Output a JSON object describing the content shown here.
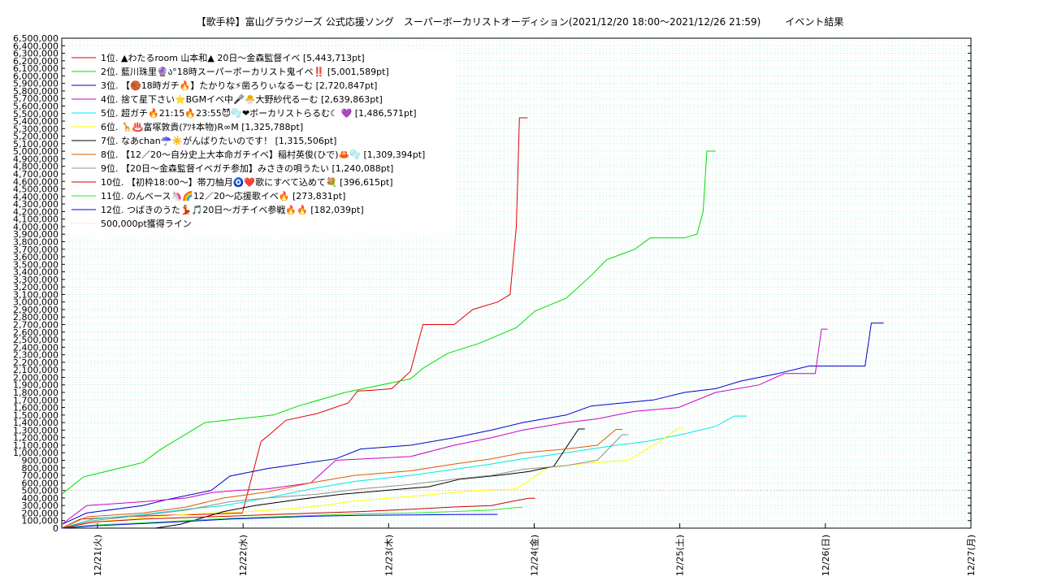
{
  "chart_data": {
    "type": "line",
    "title_main": "【歌手枠】富山グラウジーズ 公式応援ソング　スーパーボーカリストオーディション(2021/12/20 18:00〜2021/12/26 21:59)",
    "title_right": "イベント結果",
    "x_ticks": [
      "12/21(火)",
      "12/22(水)",
      "12/23(木)",
      "12/24(金)",
      "12/25(土)",
      "12/26(日)",
      "12/27(月)"
    ],
    "x_range": [
      "2021/12/20 18:00",
      "2021/12/27 00:00"
    ],
    "ylim": [
      0,
      6500000
    ],
    "y_tick_step": 100000,
    "grid": true,
    "legend_position": "top-left",
    "reference_line": {
      "label": "500,000pt獲得ライン",
      "value": 500000,
      "color": "#e8a0a0"
    },
    "series": [
      {
        "name": " 1位. ▲わたるroom 山本和▲ 20日〜金森監督イベ [5,443,713pt]",
        "color": "#e00000",
        "points": [
          [
            0,
            0
          ],
          [
            0.3,
            120000
          ],
          [
            1,
            150000
          ],
          [
            1.6,
            170000
          ],
          [
            2.2,
            180000
          ],
          [
            2.9,
            200000
          ],
          [
            3.2,
            1150000
          ],
          [
            3.35,
            1250000
          ],
          [
            3.6,
            1430000
          ],
          [
            4.1,
            1520000
          ],
          [
            4.6,
            1660000
          ],
          [
            4.75,
            1820000
          ],
          [
            5.0,
            1830000
          ],
          [
            5.3,
            1850000
          ],
          [
            5.6,
            2080000
          ],
          [
            5.8,
            2700000
          ],
          [
            6.0,
            2700000
          ],
          [
            6.3,
            2700000
          ],
          [
            6.6,
            2900000
          ],
          [
            7.0,
            3000000
          ],
          [
            7.2,
            3100000
          ],
          [
            7.3,
            4000000
          ],
          [
            7.35,
            5443713
          ],
          [
            7.48,
            5443713
          ]
        ]
      },
      {
        "name": " 2位. 藍川珠里🔮ა°18時スーパーボーカリスト鬼イベ‼️ [5,001,589pt]",
        "color": "#00dd00",
        "points": [
          [
            0,
            450000
          ],
          [
            0.35,
            680000
          ],
          [
            1.3,
            870000
          ],
          [
            1.6,
            1050000
          ],
          [
            2.3,
            1400000
          ],
          [
            3.4,
            1500000
          ],
          [
            3.8,
            1620000
          ],
          [
            4.55,
            1800000
          ],
          [
            5.6,
            1980000
          ],
          [
            5.8,
            2120000
          ],
          [
            6.2,
            2320000
          ],
          [
            6.7,
            2450000
          ],
          [
            7.3,
            2660000
          ],
          [
            7.6,
            2880000
          ],
          [
            8.1,
            3050000
          ],
          [
            8.5,
            3350000
          ],
          [
            8.75,
            3560000
          ],
          [
            9.2,
            3700000
          ],
          [
            9.45,
            3850000
          ],
          [
            10.0,
            3850000
          ],
          [
            10.2,
            3900000
          ],
          [
            10.3,
            4200000
          ],
          [
            10.36,
            5001589
          ],
          [
            10.5,
            5001589
          ]
        ]
      },
      {
        "name": " 3位. 【🏀18時ガチ🔥】たかりな⚡凿ろりぃなるーむ [2,720,847pt]",
        "color": "#0000cc",
        "points": [
          [
            0,
            50000
          ],
          [
            0.4,
            200000
          ],
          [
            1.3,
            300000
          ],
          [
            1.7,
            380000
          ],
          [
            2.4,
            500000
          ],
          [
            2.7,
            690000
          ],
          [
            3.3,
            790000
          ],
          [
            4.4,
            920000
          ],
          [
            4.8,
            1050000
          ],
          [
            5.6,
            1100000
          ],
          [
            6.3,
            1200000
          ],
          [
            6.9,
            1300000
          ],
          [
            7.4,
            1400000
          ],
          [
            8.1,
            1500000
          ],
          [
            8.5,
            1620000
          ],
          [
            9.5,
            1700000
          ],
          [
            10.0,
            1800000
          ],
          [
            10.5,
            1850000
          ],
          [
            10.9,
            1950000
          ],
          [
            11.5,
            2050000
          ],
          [
            12.0,
            2150000
          ],
          [
            12.9,
            2150000
          ],
          [
            13.0,
            2720847
          ],
          [
            13.2,
            2720847
          ]
        ]
      },
      {
        "name": " 4位. 捨て星下さい⭐BGMイベ中🎤🐣大野紗代るーむ [2,639,863pt]",
        "color": "#cc00cc",
        "points": [
          [
            0,
            50000
          ],
          [
            0.4,
            300000
          ],
          [
            1.3,
            350000
          ],
          [
            2.0,
            400000
          ],
          [
            2.4,
            470000
          ],
          [
            2.8,
            500000
          ],
          [
            3.3,
            520000
          ],
          [
            4.0,
            600000
          ],
          [
            4.4,
            900000
          ],
          [
            5.6,
            950000
          ],
          [
            6.3,
            1100000
          ],
          [
            6.9,
            1200000
          ],
          [
            7.4,
            1300000
          ],
          [
            8.1,
            1400000
          ],
          [
            8.6,
            1450000
          ],
          [
            9.2,
            1550000
          ],
          [
            9.9,
            1600000
          ],
          [
            10.5,
            1800000
          ],
          [
            11.2,
            1900000
          ],
          [
            11.6,
            2050000
          ],
          [
            12.1,
            2050000
          ],
          [
            12.2,
            2639863
          ],
          [
            12.3,
            2639863
          ]
        ]
      },
      {
        "name": " 5位. 超ガチ🔥21:15🔥23:55😈🫧❤ボーカリストらるむ☾ 💜 [1,486,571pt]",
        "color": "#00e8e8",
        "points": [
          [
            0,
            0
          ],
          [
            0.5,
            120000
          ],
          [
            1.3,
            180000
          ],
          [
            2.0,
            250000
          ],
          [
            2.6,
            300000
          ],
          [
            3.3,
            400000
          ],
          [
            4.0,
            520000
          ],
          [
            4.7,
            620000
          ],
          [
            5.6,
            700000
          ],
          [
            6.3,
            780000
          ],
          [
            6.9,
            850000
          ],
          [
            7.4,
            920000
          ],
          [
            8.1,
            1000000
          ],
          [
            8.9,
            1100000
          ],
          [
            9.4,
            1150000
          ],
          [
            10.0,
            1250000
          ],
          [
            10.5,
            1350000
          ],
          [
            10.8,
            1486571
          ],
          [
            11.0,
            1486571
          ]
        ]
      },
      {
        "name": " 6位. 🦒♨️富塚敦貴(ｱﾂｷ本物)R∞M [1,325,788pt]",
        "color": "#ffff00",
        "points": [
          [
            0,
            0
          ],
          [
            0.5,
            80000
          ],
          [
            1.5,
            150000
          ],
          [
            2.3,
            200000
          ],
          [
            3.0,
            220000
          ],
          [
            3.7,
            260000
          ],
          [
            4.2,
            300000
          ],
          [
            4.6,
            350000
          ],
          [
            5.3,
            400000
          ],
          [
            6.0,
            450000
          ],
          [
            6.7,
            500000
          ],
          [
            7.3,
            520000
          ],
          [
            7.8,
            800000
          ],
          [
            8.3,
            850000
          ],
          [
            9.1,
            900000
          ],
          [
            9.6,
            1150000
          ],
          [
            9.9,
            1325788
          ],
          [
            10.0,
            1325788
          ]
        ]
      },
      {
        "name": " 7位. なあchan☂️☀️がんばりたいのです！ [1,315,506pt]",
        "color": "#000000",
        "points": [
          [
            1.5,
            0
          ],
          [
            1.9,
            50000
          ],
          [
            2.6,
            220000
          ],
          [
            3.1,
            300000
          ],
          [
            3.8,
            380000
          ],
          [
            4.5,
            450000
          ],
          [
            5.2,
            500000
          ],
          [
            5.9,
            550000
          ],
          [
            6.4,
            650000
          ],
          [
            7.0,
            700000
          ],
          [
            7.5,
            750000
          ],
          [
            7.9,
            820000
          ],
          [
            8.3,
            1315506
          ],
          [
            8.4,
            1315506
          ]
        ]
      },
      {
        "name": " 8位. 【12／20〜自分史上大本命ガチイベ】稲村英俊(ひで)🦀🫧 [1,309,394pt]",
        "color": "#e05a00",
        "points": [
          [
            0,
            0
          ],
          [
            0.4,
            150000
          ],
          [
            1.3,
            200000
          ],
          [
            2.0,
            280000
          ],
          [
            2.6,
            400000
          ],
          [
            3.3,
            480000
          ],
          [
            4.0,
            600000
          ],
          [
            4.7,
            700000
          ],
          [
            5.6,
            760000
          ],
          [
            6.3,
            850000
          ],
          [
            6.9,
            920000
          ],
          [
            7.4,
            1000000
          ],
          [
            8.1,
            1050000
          ],
          [
            8.6,
            1100000
          ],
          [
            8.9,
            1309394
          ],
          [
            9.0,
            1309394
          ]
        ]
      },
      {
        "name": " 9位. 【20日〜金森監督イベガチ参加】みさきの唄うたい [1,240,088pt]",
        "color": "#909090",
        "points": [
          [
            0,
            0
          ],
          [
            0.5,
            100000
          ],
          [
            1.3,
            170000
          ],
          [
            2.0,
            240000
          ],
          [
            2.7,
            350000
          ],
          [
            3.3,
            400000
          ],
          [
            4.1,
            450000
          ],
          [
            4.8,
            520000
          ],
          [
            5.6,
            580000
          ],
          [
            6.3,
            650000
          ],
          [
            6.9,
            700000
          ],
          [
            7.4,
            780000
          ],
          [
            8.1,
            830000
          ],
          [
            8.6,
            900000
          ],
          [
            9.0,
            1240088
          ],
          [
            9.1,
            1240088
          ]
        ]
      },
      {
        "name": "10位. 【初枠18:00〜】帯刀柚月🧿❤️歌にすべて込めて💐 [396,615pt]",
        "color": "#cc0000",
        "points": [
          [
            0,
            0
          ],
          [
            0.5,
            80000
          ],
          [
            1.3,
            120000
          ],
          [
            2.0,
            140000
          ],
          [
            2.7,
            160000
          ],
          [
            3.4,
            180000
          ],
          [
            4.1,
            200000
          ],
          [
            4.8,
            220000
          ],
          [
            5.6,
            250000
          ],
          [
            6.3,
            280000
          ],
          [
            6.9,
            300000
          ],
          [
            7.2,
            350000
          ],
          [
            7.5,
            396615
          ],
          [
            7.6,
            396615
          ]
        ]
      },
      {
        "name": "11位. のんベース🦄🌈12／20〜応援歌イベ🔥 [273,831pt]",
        "color": "#22ee22",
        "points": [
          [
            0,
            0
          ],
          [
            0.5,
            40000
          ],
          [
            1.3,
            70000
          ],
          [
            2.0,
            100000
          ],
          [
            2.7,
            130000
          ],
          [
            3.4,
            150000
          ],
          [
            4.1,
            170000
          ],
          [
            4.8,
            190000
          ],
          [
            5.6,
            200000
          ],
          [
            6.3,
            220000
          ],
          [
            6.9,
            240000
          ],
          [
            7.3,
            273831
          ],
          [
            7.4,
            273831
          ]
        ]
      },
      {
        "name": "12位. つばきのうた💃🎵20日〜ガチイベ参戦🔥🔥 [182,039pt]",
        "color": "#0000ee",
        "points": [
          [
            0,
            0
          ],
          [
            0.5,
            30000
          ],
          [
            1.3,
            60000
          ],
          [
            2.0,
            90000
          ],
          [
            2.7,
            120000
          ],
          [
            3.4,
            140000
          ],
          [
            4.1,
            160000
          ],
          [
            4.8,
            170000
          ],
          [
            5.6,
            175000
          ],
          [
            6.3,
            180000
          ],
          [
            6.9,
            182039
          ],
          [
            7.0,
            182039
          ]
        ]
      }
    ]
  }
}
